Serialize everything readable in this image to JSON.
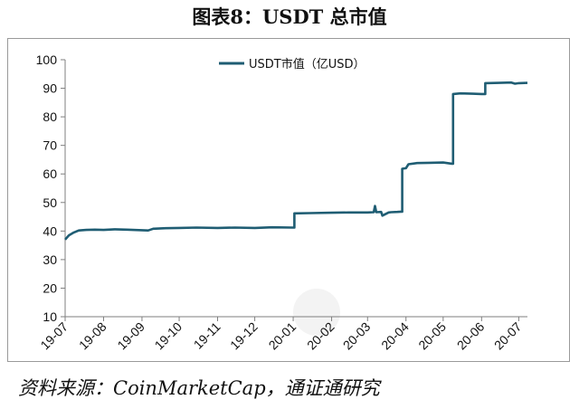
{
  "title": "图表8：USDT 总市值",
  "source": "资料来源：CoinMarketCap，通证通研究",
  "colors": {
    "series": "#1f5d73",
    "axis": "#7f7f7f"
  },
  "chart_data": {
    "type": "line",
    "title": "图表8：USDT 总市值",
    "xlabel": "",
    "ylabel": "",
    "ylim": [
      10,
      100
    ],
    "yticks": [
      10,
      20,
      30,
      40,
      50,
      60,
      70,
      80,
      90,
      100
    ],
    "xlim": [
      "2019-07-01",
      "2020-07-08"
    ],
    "xticks": [
      {
        "date": "2019-07-01",
        "label": "19-07"
      },
      {
        "date": "2019-08-01",
        "label": "19-08"
      },
      {
        "date": "2019-09-01",
        "label": "19-09"
      },
      {
        "date": "2019-10-01",
        "label": "19-10"
      },
      {
        "date": "2019-11-01",
        "label": "19-11"
      },
      {
        "date": "2019-12-01",
        "label": "19-12"
      },
      {
        "date": "2020-01-01",
        "label": "20-01"
      },
      {
        "date": "2020-02-01",
        "label": "20-02"
      },
      {
        "date": "2020-03-01",
        "label": "20-03"
      },
      {
        "date": "2020-04-01",
        "label": "20-04"
      },
      {
        "date": "2020-05-01",
        "label": "20-05"
      },
      {
        "date": "2020-06-01",
        "label": "20-06"
      },
      {
        "date": "2020-07-01",
        "label": "20-07"
      }
    ],
    "grid": false,
    "legend": "top-center",
    "series": [
      {
        "name": "USDT市值（亿USD）",
        "x": [
          "2019-07-01",
          "2019-07-04",
          "2019-07-08",
          "2019-07-12",
          "2019-07-18",
          "2019-07-25",
          "2019-08-01",
          "2019-08-10",
          "2019-08-20",
          "2019-09-01",
          "2019-09-06",
          "2019-09-10",
          "2019-09-20",
          "2019-10-01",
          "2019-10-15",
          "2019-11-01",
          "2019-11-15",
          "2019-12-01",
          "2019-12-15",
          "2019-12-31",
          "2020-01-02",
          "2020-01-15",
          "2020-02-01",
          "2020-02-15",
          "2020-03-01",
          "2020-03-06",
          "2020-03-07",
          "2020-03-08",
          "2020-03-12",
          "2020-03-13",
          "2020-03-18",
          "2020-03-20",
          "2020-03-25",
          "2020-03-28",
          "2020-03-29",
          "2020-04-01",
          "2020-04-03",
          "2020-04-10",
          "2020-04-20",
          "2020-05-01",
          "2020-05-08",
          "2020-05-09",
          "2020-05-15",
          "2020-05-25",
          "2020-06-01",
          "2020-06-04",
          "2020-06-15",
          "2020-06-25",
          "2020-06-28",
          "2020-07-01",
          "2020-07-08"
        ],
        "values": [
          37.0,
          38.5,
          39.5,
          40.2,
          40.4,
          40.5,
          40.4,
          40.6,
          40.5,
          40.3,
          40.2,
          40.8,
          41.0,
          41.1,
          41.2,
          41.1,
          41.2,
          41.1,
          41.3,
          41.2,
          46.2,
          46.3,
          46.4,
          46.5,
          46.5,
          46.6,
          48.8,
          46.6,
          46.7,
          45.4,
          46.5,
          46.6,
          46.7,
          46.8,
          61.8,
          62.0,
          63.4,
          63.8,
          63.9,
          64.0,
          63.6,
          88.0,
          88.2,
          88.1,
          88.0,
          91.8,
          91.9,
          92.0,
          91.6,
          91.8,
          91.9
        ]
      }
    ]
  }
}
